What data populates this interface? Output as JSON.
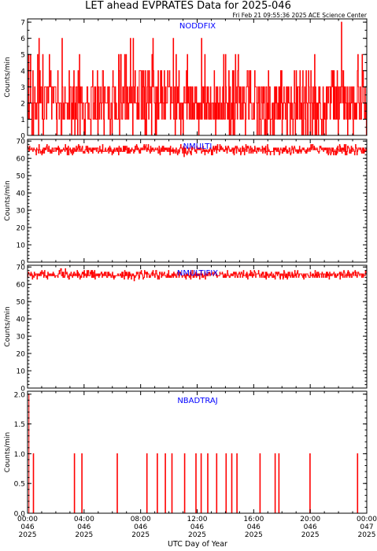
{
  "title": "LET ahead EVPRATES Data for 2025-046",
  "timestamp": "Fri Feb 21 09:55:36 2025 ACE Science Center",
  "xlabel": "UTC Day of Year",
  "colors": {
    "data": "#ff0000",
    "panel_label": "#0000ff",
    "axes": "#000000",
    "background": "#ffffff"
  },
  "chart_data": [
    {
      "type": "line",
      "series": [
        {
          "name": "NODDFIX"
        }
      ],
      "ylabel": "Counts/min",
      "ylim": [
        0,
        7.2
      ],
      "yticks": [
        "0",
        "1",
        "2",
        "3",
        "4",
        "5",
        "6",
        "7"
      ],
      "xlim": [
        0,
        24
      ],
      "xticks": [
        "00:00",
        "04:00",
        "08:00",
        "12:00",
        "16:00",
        "20:00",
        "00:00"
      ],
      "x_note": "hours UTC, one sample per minute",
      "sample_values": [
        0,
        1,
        2,
        3,
        4,
        5,
        6,
        7
      ],
      "sample_weights": [
        0.1,
        0.24,
        0.3,
        0.22,
        0.09,
        0.035,
        0.012,
        0.003
      ],
      "baseline": 2,
      "grid": false
    },
    {
      "type": "line",
      "series": [
        {
          "name": "NMULTI"
        }
      ],
      "ylabel": "Counts/min",
      "ylim": [
        0,
        71
      ],
      "yticks": [
        "0",
        "10",
        "20",
        "30",
        "40",
        "50",
        "60",
        "70"
      ],
      "xlim": [
        0,
        24
      ],
      "xticks": [
        "00:00",
        "04:00",
        "08:00",
        "12:00",
        "16:00",
        "20:00",
        "00:00"
      ],
      "mean": 65,
      "range": [
        61,
        69
      ],
      "grid": false
    },
    {
      "type": "line",
      "series": [
        {
          "name": "NMULTIFIX"
        }
      ],
      "ylabel": "Counts/min",
      "ylim": [
        0,
        71
      ],
      "yticks": [
        "0",
        "10",
        "20",
        "30",
        "40",
        "50",
        "60",
        "70"
      ],
      "xlim": [
        0,
        24
      ],
      "xticks": [
        "00:00",
        "04:00",
        "08:00",
        "12:00",
        "16:00",
        "20:00",
        "00:00"
      ],
      "mean": 65.5,
      "range": [
        62,
        69
      ],
      "grid": false
    },
    {
      "type": "line",
      "series": [
        {
          "name": "NBADTRAJ"
        }
      ],
      "ylabel": "Counts/min",
      "ylim": [
        0,
        2.05
      ],
      "yticks": [
        "0.0",
        "0.5",
        "1.0",
        "1.5",
        "2.0"
      ],
      "xlim": [
        0,
        24
      ],
      "xticks": [
        "00:00",
        "04:00",
        "08:00",
        "12:00",
        "16:00",
        "20:00",
        "00:00"
      ],
      "sample_values": [
        0,
        1
      ],
      "sample_weights": [
        0.96,
        0.04
      ],
      "spike": {
        "x": 0.0,
        "y": 2
      },
      "grid": false
    }
  ],
  "xtick_lines": [
    [
      "00:00",
      "046",
      "2025"
    ],
    [
      "04:00",
      "046",
      "2025"
    ],
    [
      "08:00",
      "046",
      "2025"
    ],
    [
      "12:00",
      "046",
      "2025"
    ],
    [
      "16:00",
      "046",
      "2025"
    ],
    [
      "20:00",
      "046",
      "2025"
    ],
    [
      "00:00",
      "047",
      "2025"
    ]
  ]
}
